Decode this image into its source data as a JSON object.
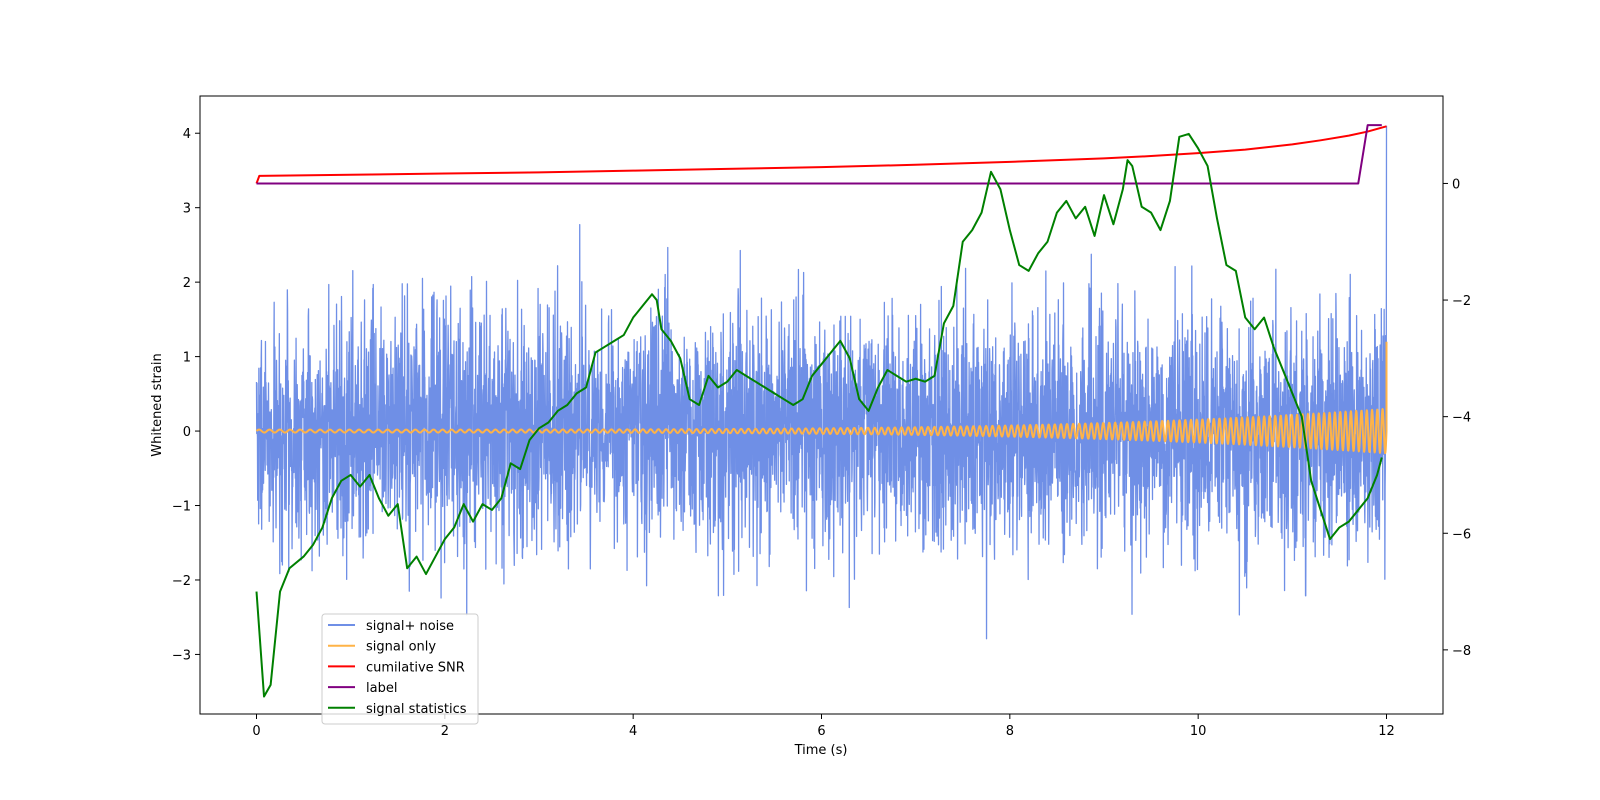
{
  "chart_data": {
    "type": "line",
    "title": "",
    "xlabel": "Time (s)",
    "ylabel": "Whitened strain",
    "ylabel_right": "",
    "xlim": [
      -0.6,
      12.6
    ],
    "ylim": [
      -3.8,
      4.5
    ],
    "ylim_right": [
      -9.1,
      1.5
    ],
    "grid": false,
    "legend_position": "bottom-left",
    "x_ticks": [
      0,
      2,
      4,
      6,
      8,
      10,
      12
    ],
    "x_tick_labels": [
      "0",
      "2",
      "4",
      "6",
      "8",
      "10",
      "12"
    ],
    "y_ticks": [
      -3,
      -2,
      -1,
      0,
      1,
      2,
      3,
      4
    ],
    "y_tick_labels": [
      "−3",
      "−2",
      "−1",
      "0",
      "1",
      "2",
      "3",
      "4"
    ],
    "y_right_ticks": [
      -8,
      -6,
      -4,
      -2,
      0
    ],
    "y_right_tick_labels": [
      "−8",
      "−6",
      "−4",
      "−2",
      "0"
    ],
    "series": [
      {
        "name": "signal+ noise",
        "color": "#6f8fe6",
        "axis": "left",
        "kind": "noise",
        "sample_rate": 400,
        "duration": 12,
        "std": 0.78,
        "envelope": [
          -3.4,
          2.9
        ],
        "final_value": 4.1,
        "seed": 7
      },
      {
        "name": "signal only",
        "color": "#ffb347",
        "axis": "left",
        "kind": "chirp",
        "duration": 12,
        "amplitude_start": 0.02,
        "amplitude_end": 0.3,
        "freq_start": 9,
        "freq_end": 18,
        "final_value": 1.2
      },
      {
        "name": "cumilative SNR",
        "color": "#ff0000",
        "axis": "right",
        "x": [
          0,
          0.03,
          1,
          2,
          3,
          4,
          5,
          6,
          7,
          8,
          8.5,
          9,
          9.5,
          10,
          10.5,
          11,
          11.3,
          11.6,
          11.8,
          12
        ],
        "values": [
          0.0,
          0.13,
          0.15,
          0.17,
          0.19,
          0.22,
          0.25,
          0.28,
          0.32,
          0.37,
          0.4,
          0.43,
          0.47,
          0.52,
          0.58,
          0.67,
          0.74,
          0.82,
          0.89,
          0.98
        ]
      },
      {
        "name": "label",
        "color": "#800080",
        "axis": "right",
        "x": [
          0,
          11.7,
          11.8,
          11.95
        ],
        "values": [
          0,
          0,
          1,
          1
        ]
      },
      {
        "name": "signal statistics",
        "color": "#008000",
        "axis": "right",
        "x": [
          0,
          0.08,
          0.15,
          0.25,
          0.35,
          0.5,
          0.6,
          0.7,
          0.8,
          0.9,
          1.0,
          1.1,
          1.2,
          1.3,
          1.4,
          1.5,
          1.6,
          1.7,
          1.8,
          1.9,
          2.0,
          2.1,
          2.2,
          2.3,
          2.4,
          2.5,
          2.6,
          2.7,
          2.8,
          2.9,
          3.0,
          3.1,
          3.2,
          3.3,
          3.4,
          3.5,
          3.6,
          3.7,
          3.8,
          3.9,
          4.0,
          4.1,
          4.2,
          4.25,
          4.3,
          4.4,
          4.5,
          4.6,
          4.7,
          4.8,
          4.9,
          5.0,
          5.1,
          5.2,
          5.3,
          5.4,
          5.5,
          5.6,
          5.7,
          5.8,
          5.9,
          6.0,
          6.1,
          6.2,
          6.3,
          6.4,
          6.5,
          6.6,
          6.7,
          6.8,
          6.9,
          7.0,
          7.1,
          7.2,
          7.3,
          7.4,
          7.5,
          7.6,
          7.7,
          7.8,
          7.9,
          8.0,
          8.1,
          8.2,
          8.3,
          8.4,
          8.5,
          8.6,
          8.7,
          8.8,
          8.9,
          9.0,
          9.1,
          9.2,
          9.25,
          9.3,
          9.4,
          9.5,
          9.6,
          9.7,
          9.8,
          9.9,
          10.0,
          10.1,
          10.2,
          10.3,
          10.4,
          10.5,
          10.6,
          10.7,
          10.8,
          10.9,
          11.0,
          11.1,
          11.2,
          11.3,
          11.4,
          11.5,
          11.6,
          11.7,
          11.8,
          11.9,
          11.95
        ],
        "values": [
          -7.0,
          -8.8,
          -8.6,
          -7.0,
          -6.6,
          -6.4,
          -6.2,
          -5.9,
          -5.4,
          -5.1,
          -5.0,
          -5.2,
          -5.0,
          -5.4,
          -5.7,
          -5.5,
          -6.6,
          -6.4,
          -6.7,
          -6.4,
          -6.1,
          -5.9,
          -5.5,
          -5.8,
          -5.5,
          -5.6,
          -5.4,
          -4.8,
          -4.9,
          -4.4,
          -4.2,
          -4.1,
          -3.9,
          -3.8,
          -3.6,
          -3.5,
          -2.9,
          -2.8,
          -2.7,
          -2.6,
          -2.3,
          -2.1,
          -1.9,
          -2.0,
          -2.5,
          -2.7,
          -3.0,
          -3.7,
          -3.8,
          -3.3,
          -3.5,
          -3.4,
          -3.2,
          -3.3,
          -3.4,
          -3.5,
          -3.6,
          -3.7,
          -3.8,
          -3.7,
          -3.3,
          -3.1,
          -2.9,
          -2.7,
          -3.0,
          -3.7,
          -3.9,
          -3.5,
          -3.2,
          -3.3,
          -3.4,
          -3.35,
          -3.4,
          -3.3,
          -2.4,
          -2.1,
          -1.0,
          -0.8,
          -0.5,
          0.2,
          -0.1,
          -0.8,
          -1.4,
          -1.5,
          -1.2,
          -1.0,
          -0.5,
          -0.3,
          -0.6,
          -0.4,
          -0.9,
          -0.2,
          -0.7,
          -0.1,
          0.4,
          0.3,
          -0.4,
          -0.5,
          -0.8,
          -0.3,
          0.8,
          0.85,
          0.6,
          0.3,
          -0.6,
          -1.4,
          -1.5,
          -2.3,
          -2.5,
          -2.3,
          -2.8,
          -3.2,
          -3.6,
          -4.0,
          -5.1,
          -5.6,
          -6.1,
          -5.9,
          -5.8,
          -5.6,
          -5.4,
          -5.0,
          -4.7
        ]
      }
    ]
  }
}
